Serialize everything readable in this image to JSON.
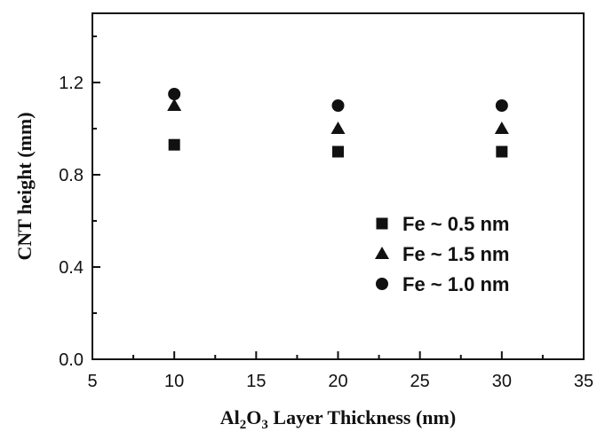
{
  "chart_data": {
    "type": "scatter",
    "xlabel": {
      "parts": [
        {
          "text": "Al",
          "sub": false
        },
        {
          "text": "2",
          "sub": true
        },
        {
          "text": "O",
          "sub": false
        },
        {
          "text": "3",
          "sub": true
        },
        {
          "text": " Layer Thickness (nm)",
          "sub": false
        }
      ]
    },
    "ylabel": "CNT height (mm)",
    "xlim": [
      5,
      35
    ],
    "ylim": [
      0.0,
      1.5
    ],
    "xticks": [
      5,
      10,
      15,
      20,
      25,
      30,
      35
    ],
    "xtick_labels": [
      "5",
      "10",
      "15",
      "20",
      "25",
      "30",
      "35"
    ],
    "yticks": [
      0.0,
      0.4,
      0.8,
      1.2
    ],
    "ytick_labels": [
      "0.0",
      "0.4",
      "0.8",
      "1.2"
    ],
    "legend_position": "right-center",
    "series": [
      {
        "name": "Fe ~ 0.5 nm",
        "marker": "square",
        "x": [
          10,
          20,
          30
        ],
        "y": [
          0.93,
          0.9,
          0.9
        ]
      },
      {
        "name": "Fe ~ 1.5 nm",
        "marker": "triangle",
        "x": [
          10,
          20,
          30
        ],
        "y": [
          1.1,
          1.0,
          1.0
        ]
      },
      {
        "name": "Fe ~ 1.0 nm",
        "marker": "circle",
        "x": [
          10,
          20,
          30
        ],
        "y": [
          1.15,
          1.1,
          1.1
        ]
      }
    ]
  }
}
